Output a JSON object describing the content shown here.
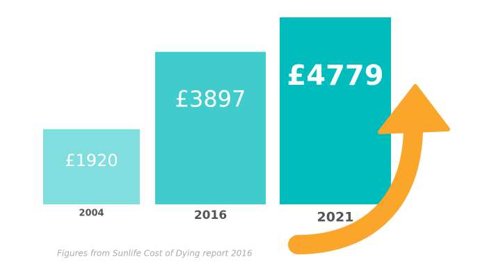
{
  "chart_data": {
    "type": "bar",
    "categories": [
      "2004",
      "2016",
      "2021"
    ],
    "values": [
      1920,
      3897,
      4779
    ],
    "value_labels": [
      "£1920",
      "£3897",
      "£4779"
    ],
    "colors": [
      "#80dede",
      "#40cccc",
      "#00bcbc"
    ],
    "footnote": "Figures from Sunlife Cost of Dying report 2016"
  }
}
